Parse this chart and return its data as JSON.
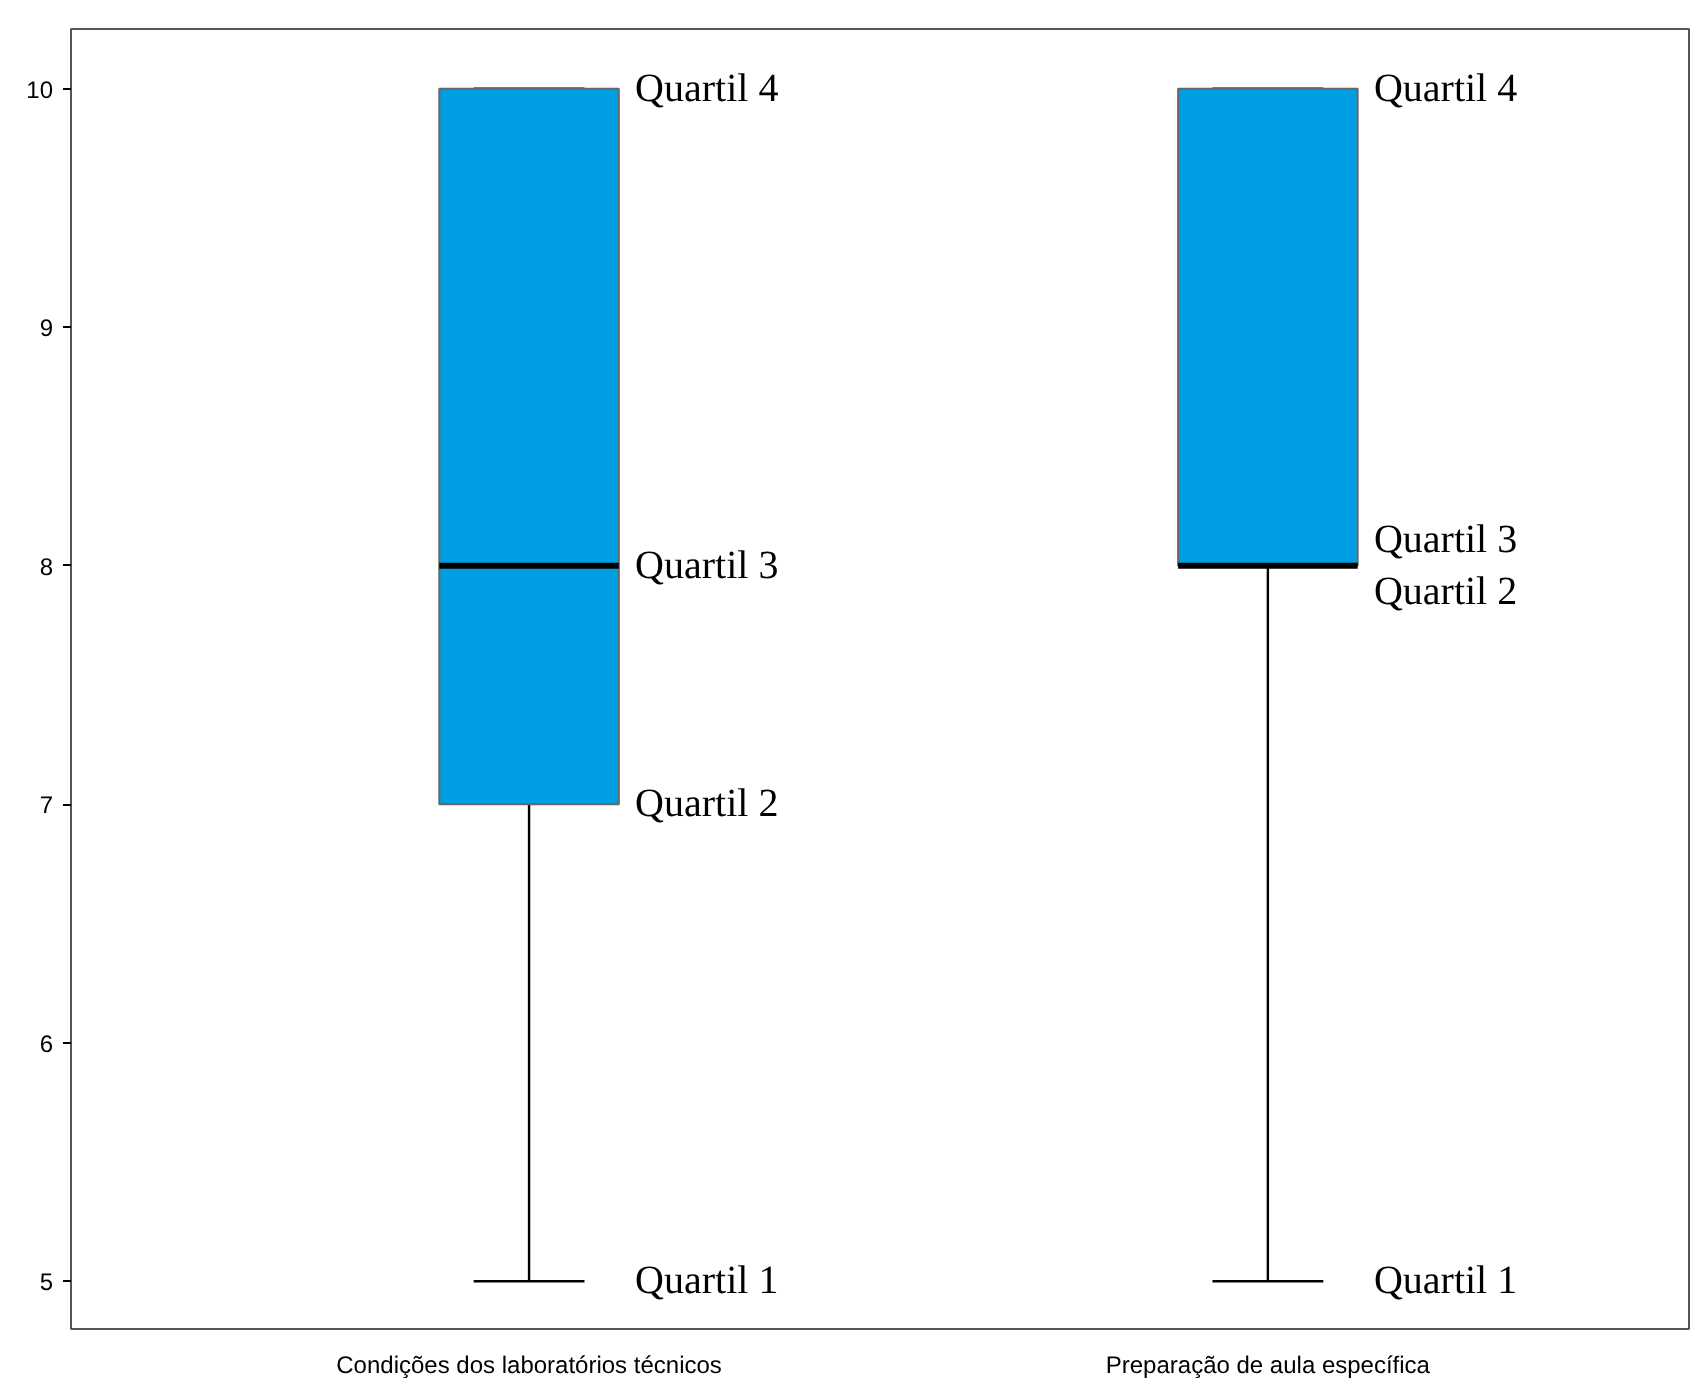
{
  "chart_data": {
    "type": "box",
    "categories": [
      "Condições dos laboratórios técnicos",
      "Preparação de aula específica"
    ],
    "boxes": [
      {
        "low": 5,
        "q1": 7,
        "median": 8,
        "q3": 10,
        "high": 10
      },
      {
        "low": 5,
        "q1": 8,
        "median": 8,
        "q3": 10,
        "high": 10
      }
    ],
    "color": "#009fe3",
    "ylim": [
      4.8,
      10.25
    ],
    "yticks": [
      5,
      6,
      7,
      8,
      9,
      10
    ],
    "grid": false,
    "annotations": [
      {
        "text": "Quartil 4",
        "x": "Condições dos laboratórios técnicos",
        "y": 10
      },
      {
        "text": "Quartil 3",
        "x": "Condições dos laboratórios técnicos",
        "y": 8
      },
      {
        "text": "Quartil 2",
        "x": "Condições dos laboratórios técnicos",
        "y": 7
      },
      {
        "text": "Quartil 1",
        "x": "Condições dos laboratórios técnicos",
        "y": 5
      },
      {
        "text": "Quartil 4",
        "x": "Preparação de aula específica",
        "y": 10
      },
      {
        "text": "Quartil 3",
        "x": "Preparação de aula específica",
        "y": 8
      },
      {
        "text": "Quartil 2",
        "x": "Preparação de aula específica",
        "y": 8
      },
      {
        "text": "Quartil 1",
        "x": "Preparação de aula específica",
        "y": 5
      }
    ]
  }
}
